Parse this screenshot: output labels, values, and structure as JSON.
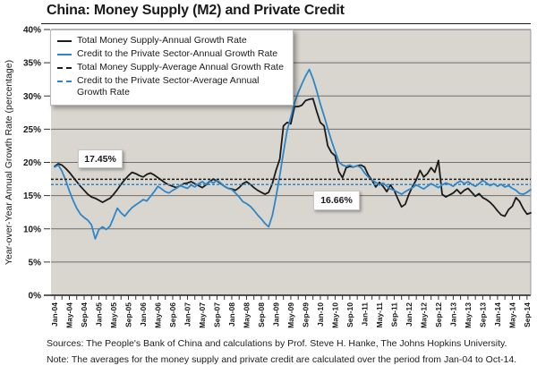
{
  "chart_data": {
    "type": "line",
    "title": "China: Money Supply (M2) and Private Credit",
    "ylabel": "Year-over-Year Annual Growth Rate (percentage)",
    "xlabel": "",
    "ylim": [
      0,
      40
    ],
    "ytick_labels": [
      "0%",
      "5%",
      "10%",
      "15%",
      "20%",
      "25%",
      "30%",
      "35%",
      "40%"
    ],
    "x_tick_labels": [
      "Jan-04",
      "May-04",
      "Sep-04",
      "Jan-05",
      "May-05",
      "Sep-05",
      "Jan-06",
      "May-06",
      "Sep-06",
      "Jan-07",
      "May-07",
      "Sep-07",
      "Jan-08",
      "May-08",
      "Sep-08",
      "Jan-09",
      "May-09",
      "Sep-09",
      "Jan-10",
      "May-10",
      "Sep-10",
      "Jan-11",
      "May-11",
      "Sep-11",
      "Jan-12",
      "May-12",
      "Sep-12",
      "Jan-13",
      "May-13",
      "Sep-13",
      "Jan-14",
      "May-14",
      "Sep-14"
    ],
    "x_start": "Jan-04",
    "x_end": "Oct-14",
    "n_months": 130,
    "grid": "horizontal",
    "legend_position": "top-left",
    "series": [
      {
        "name": "Total Money Supply-Annual Growth Rate",
        "type": "line",
        "style": "solid",
        "color": "#1a1a1a",
        "values": [
          19.4,
          19.8,
          19.6,
          19.1,
          18.5,
          17.8,
          17.1,
          16.4,
          15.8,
          15.2,
          14.8,
          14.6,
          14.3,
          14.0,
          14.3,
          14.6,
          15.2,
          15.9,
          16.7,
          17.4,
          18.0,
          18.5,
          18.3,
          18.0,
          17.8,
          18.2,
          18.4,
          18.1,
          17.7,
          17.3,
          16.9,
          16.6,
          16.4,
          16.2,
          16.5,
          16.8,
          16.9,
          17.1,
          16.8,
          16.5,
          16.2,
          16.6,
          17.1,
          17.5,
          17.2,
          16.8,
          16.4,
          16.1,
          16.0,
          15.8,
          16.2,
          16.8,
          17.1,
          16.7,
          16.2,
          15.8,
          15.5,
          15.2,
          15.5,
          16.8,
          18.8,
          20.5,
          25.5,
          26.0,
          25.8,
          28.4,
          28.4,
          28.6,
          29.3,
          29.5,
          29.6,
          27.7,
          26.0,
          25.5,
          22.5,
          21.5,
          21.0,
          18.6,
          17.7,
          19.2,
          19.4,
          19.3,
          19.5,
          19.6,
          19.3,
          18.1,
          17.3,
          16.3,
          17.0,
          16.4,
          15.6,
          16.6,
          15.8,
          14.5,
          13.3,
          13.7,
          15.2,
          16.4,
          17.4,
          18.8,
          17.8,
          18.3,
          19.2,
          18.5,
          20.3,
          15.2,
          14.8,
          15.1,
          15.4,
          15.9,
          15.3,
          15.8,
          16.1,
          15.5,
          14.9,
          15.3,
          14.7,
          14.4,
          14.0,
          13.4,
          12.7,
          12.1,
          11.9,
          12.9,
          13.4,
          14.7,
          14.1,
          13.0,
          12.2,
          12.4
        ]
      },
      {
        "name": "Credit to the Private Sector-Annual Growth Rate",
        "type": "line",
        "style": "solid",
        "color": "#2e86c8",
        "values": [
          19.3,
          19.6,
          18.7,
          17.3,
          15.7,
          14.3,
          13.1,
          12.2,
          11.7,
          11.3,
          10.6,
          8.5,
          9.9,
          10.3,
          9.9,
          10.4,
          11.7,
          13.1,
          12.4,
          11.9,
          12.6,
          13.2,
          13.6,
          14.0,
          14.4,
          14.2,
          14.9,
          15.6,
          16.4,
          16.0,
          15.6,
          15.4,
          15.8,
          16.1,
          16.5,
          16.3,
          16.1,
          16.6,
          16.3,
          16.8,
          17.1,
          16.7,
          17.2,
          16.9,
          17.3,
          16.9,
          16.4,
          16.1,
          15.9,
          15.4,
          14.8,
          14.1,
          13.8,
          13.4,
          12.8,
          12.1,
          11.5,
          10.8,
          10.3,
          12.0,
          14.8,
          18.0,
          21.5,
          24.8,
          26.8,
          29.0,
          30.5,
          31.8,
          33.0,
          34.0,
          32.6,
          30.8,
          28.8,
          27.0,
          25.1,
          23.3,
          21.7,
          20.1,
          19.6,
          19.4,
          19.6,
          19.3,
          19.5,
          19.2,
          18.4,
          17.8,
          17.3,
          17.0,
          16.6,
          16.9,
          16.4,
          16.0,
          15.8,
          15.5,
          15.2,
          15.6,
          15.9,
          16.2,
          16.6,
          16.3,
          16.0,
          16.4,
          16.8,
          16.5,
          16.2,
          16.6,
          16.9,
          16.7,
          16.4,
          16.9,
          17.2,
          16.8,
          17.1,
          16.7,
          16.4,
          16.8,
          17.3,
          16.9,
          16.5,
          16.8,
          16.4,
          16.7,
          16.3,
          16.5,
          16.1,
          15.8,
          15.3,
          15.2,
          15.5,
          15.9
        ]
      },
      {
        "name": "Total Money Supply-Average Annual Growth Rate",
        "type": "hline",
        "style": "dashed",
        "color": "#1a1a1a",
        "value": 17.45
      },
      {
        "name": "Credit to the Private Sector-Average Annual Growth Rate",
        "type": "hline",
        "style": "dashed",
        "color": "#2e86c8",
        "value": 16.66
      }
    ],
    "annotations": [
      {
        "text": "17.45%",
        "refers_to": "Total Money Supply-Average Annual Growth Rate"
      },
      {
        "text": "16.66%",
        "refers_to": "Credit to the Private Sector-Average Annual Growth Rate"
      }
    ],
    "colors": {
      "plot_bg": "#d9d6cf",
      "grid": "#6e6e6e",
      "axis": "#1a1a1a"
    }
  },
  "footer": {
    "sources": "Sources: The People's Bank of China and calculations by Prof. Steve H. Hanke,  The Johns Hopkins University.",
    "note": "Note: The averages for the money supply and private credit are calculated over the period from Jan-04 to Oct-14."
  }
}
